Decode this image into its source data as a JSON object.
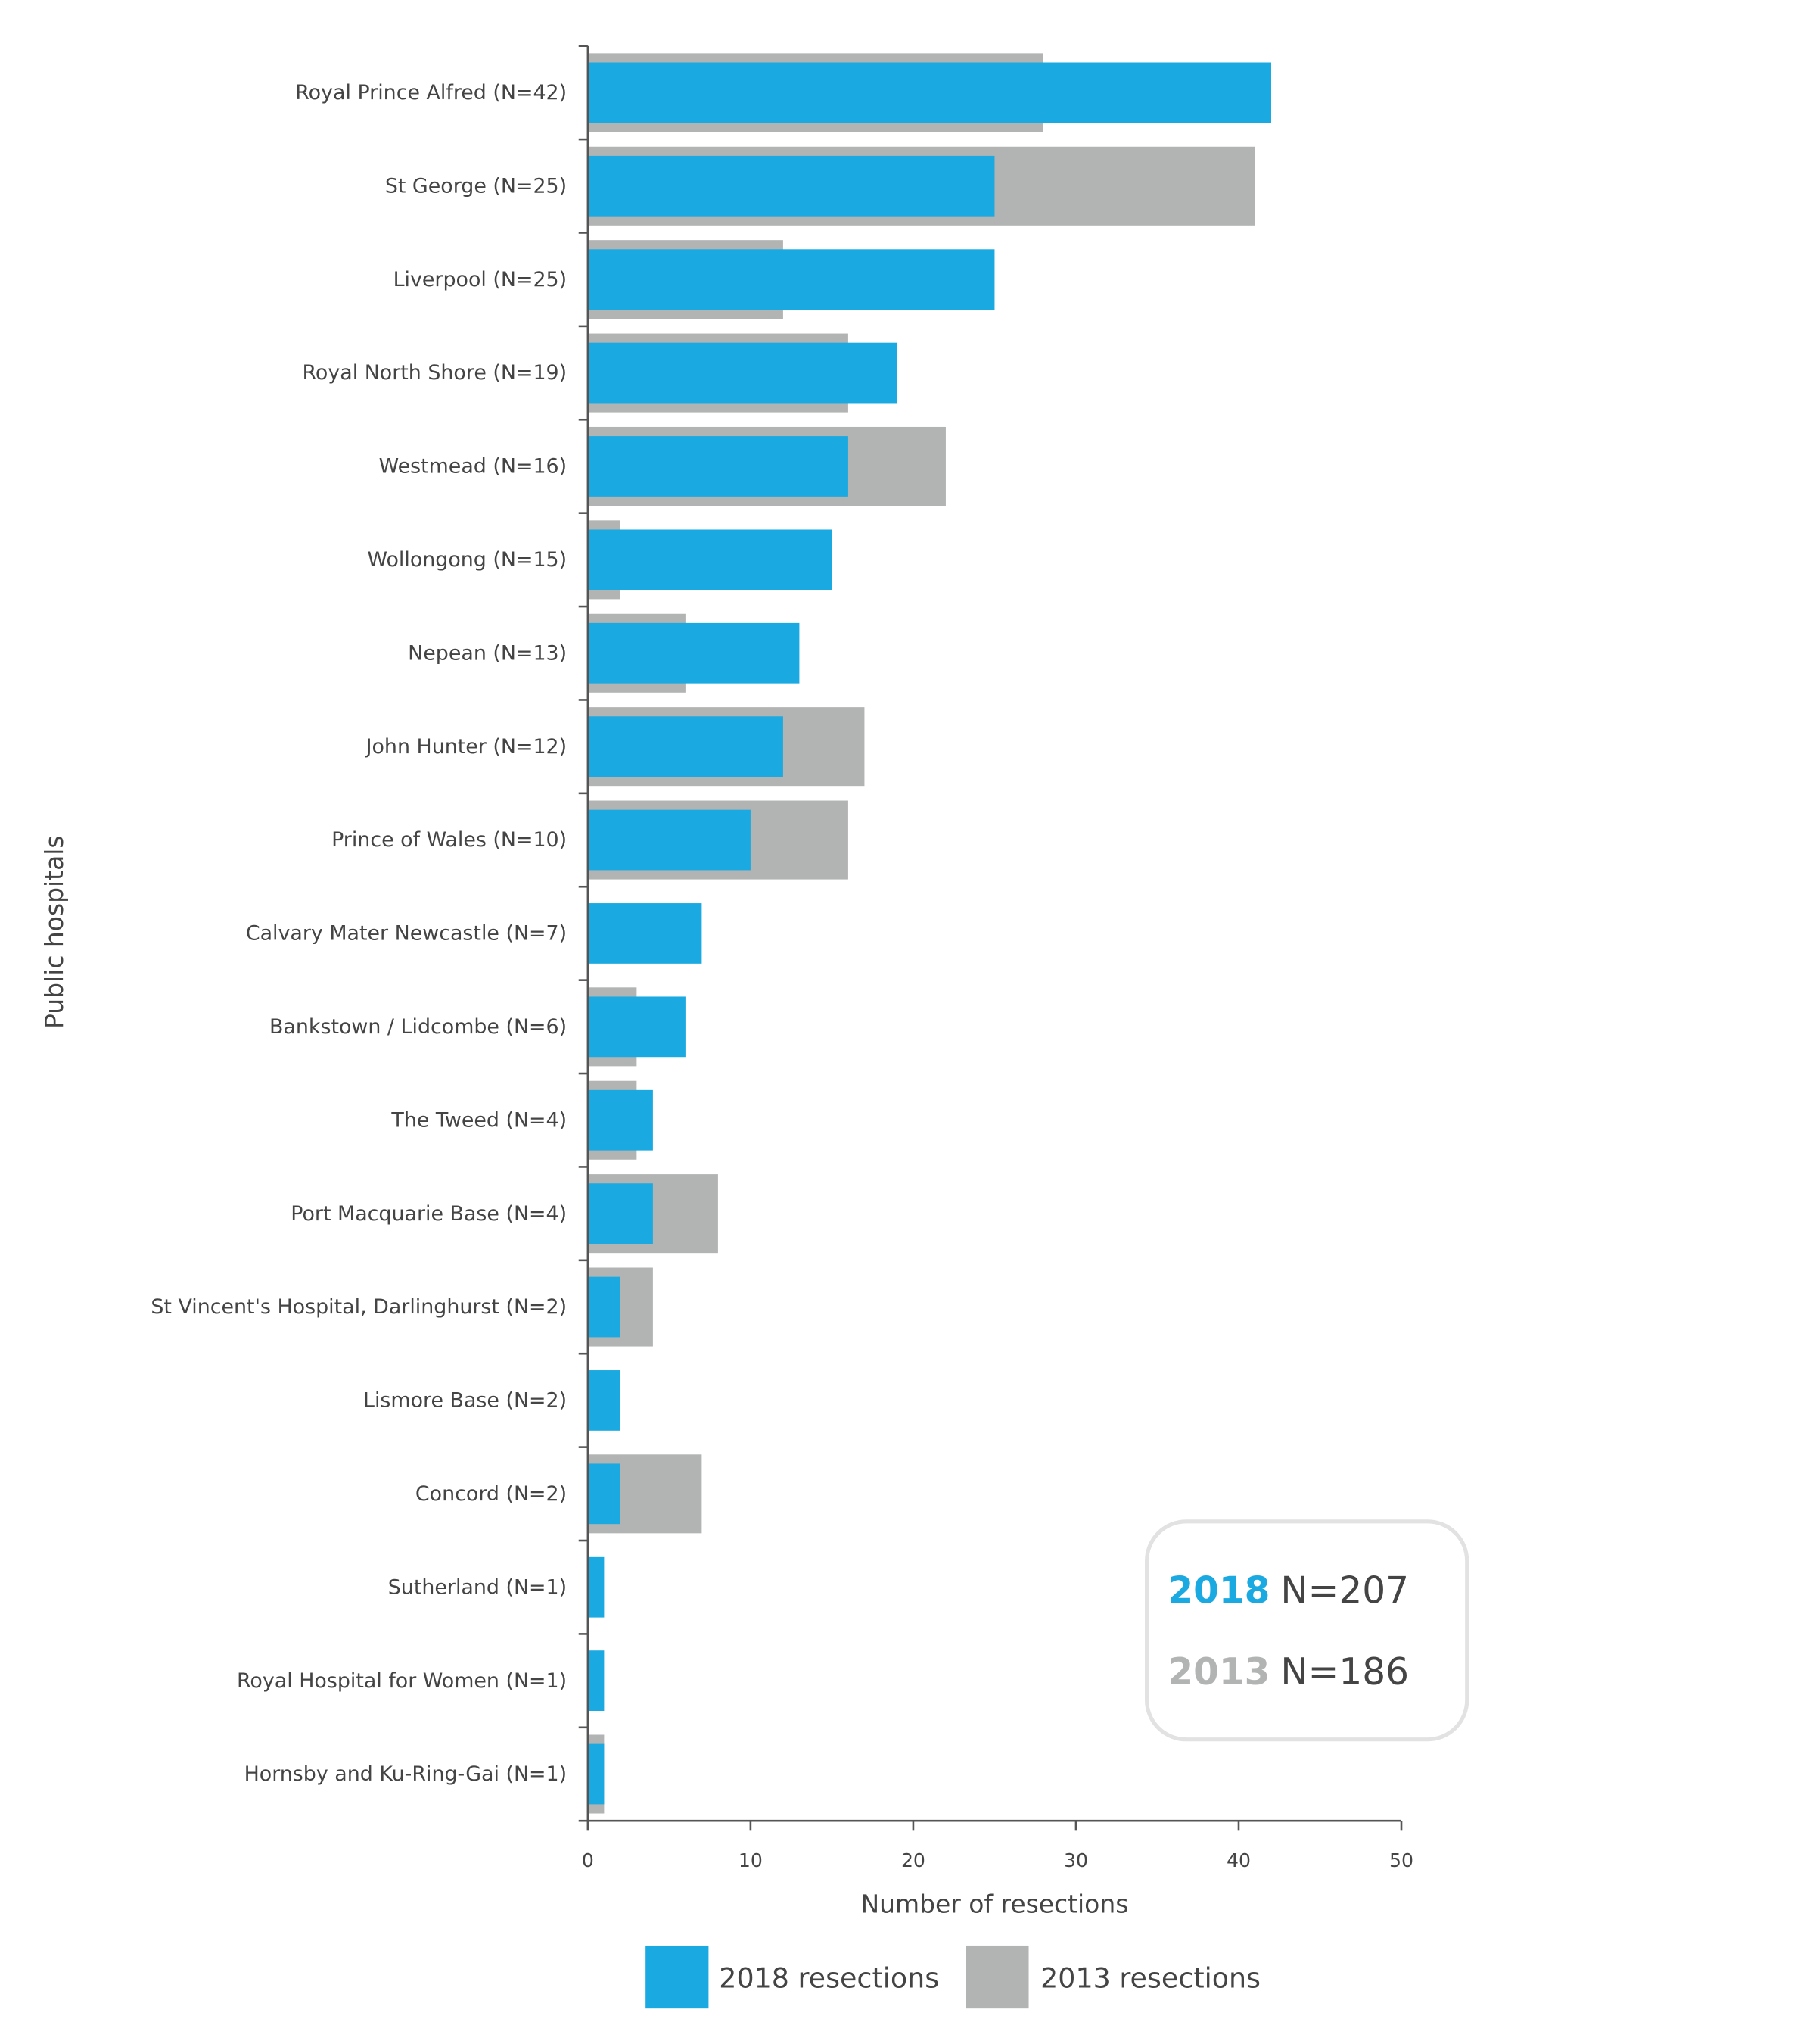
{
  "chart_data": {
    "type": "bar",
    "orientation": "horizontal",
    "ylabel": "Public hospitals",
    "xlabel": "Number of resections",
    "xlim": [
      0,
      50
    ],
    "xticks": [
      0,
      10,
      20,
      30,
      40,
      50
    ],
    "grid": false,
    "categories": [
      "Royal Prince Alfred (N=42)",
      "St George (N=25)",
      "Liverpool (N=25)",
      "Royal North Shore (N=19)",
      "Westmead (N=16)",
      "Wollongong (N=15)",
      "Nepean (N=13)",
      "John Hunter (N=12)",
      "Prince of Wales (N=10)",
      "Calvary Mater Newcastle (N=7)",
      "Bankstown / Lidcombe (N=6)",
      "The Tweed (N=4)",
      "Port Macquarie Base (N=4)",
      "St Vincent's Hospital, Darlinghurst (N=2)",
      "Lismore Base (N=2)",
      "Concord (N=2)",
      "Sutherland (N=1)",
      "Royal Hospital for Women (N=1)",
      "Hornsby and Ku-Ring-Gai (N=1)"
    ],
    "series": [
      {
        "name": "2018 resections",
        "color": "#1ba9e1",
        "values": [
          42,
          25,
          25,
          19,
          16,
          15,
          13,
          12,
          10,
          7,
          6,
          4,
          4,
          2,
          2,
          2,
          1,
          1,
          1
        ]
      },
      {
        "name": "2013 resections",
        "color": "#b2b4b3",
        "values": [
          28,
          41,
          12,
          16,
          22,
          2,
          6,
          17,
          16,
          0,
          3,
          3,
          8,
          4,
          0,
          7,
          0,
          0,
          1
        ]
      }
    ],
    "legend_position": "bottom",
    "annotation_box": {
      "lines": [
        {
          "year": "2018",
          "total": "N=207",
          "color": "#1ba9e1"
        },
        {
          "year": "2013",
          "total": "N=186",
          "color": "#b2b4b3"
        }
      ]
    }
  }
}
